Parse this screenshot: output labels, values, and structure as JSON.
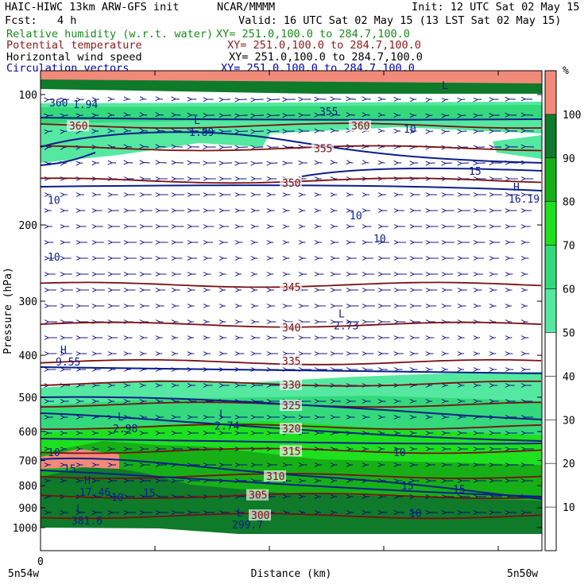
{
  "header": {
    "model": "HAIC-HIWC 13km ARW-GFS init",
    "org": "NCAR/MMMM",
    "init": "Init: 12 UTC Sat 02 May 15",
    "fcst_label": "Fcst:",
    "fcst_value": "4 h",
    "valid": "Valid: 16 UTC Sat 02 May 15 (13 LST Sat 02 May 15)"
  },
  "fields": [
    {
      "name": "Relative humidity (w.r.t. water)",
      "xy": "XY= 251.0,100.0 to 284.7,100.0",
      "color": "#1a8a1a"
    },
    {
      "name": "Potential temperature",
      "xy": "XY= 251.0,100.0 to 284.7,100.0",
      "color": "#8b1a1a"
    },
    {
      "name": "Horizontal wind speed",
      "xy": "XY= 251.0,100.0 to 284.7,100.0",
      "color": "#000000"
    },
    {
      "name": "Circulation vectors",
      "xy": "XY= 251.0,100.0 to 284.7,100.0",
      "color": "#0000b0"
    }
  ],
  "chart_data": {
    "type": "heatmap",
    "x_axis": {
      "label": "Distance (km)",
      "tick_zero": "0",
      "left_endpoint": "5n54w",
      "right_endpoint": "5n50w"
    },
    "y_axis": {
      "label": "Pressure (hPa)",
      "ticks": [
        100,
        200,
        300,
        400,
        500,
        600,
        700,
        800,
        900,
        1000
      ],
      "range": [
        1050,
        80
      ],
      "scale": "log"
    },
    "colorbar": {
      "unit": "%",
      "ticks": [
        10,
        20,
        30,
        40,
        50,
        60,
        70,
        80,
        90,
        100
      ],
      "bins": [
        {
          "from": 50,
          "to": 60,
          "color": "#55e8a0"
        },
        {
          "from": 60,
          "to": 70,
          "color": "#33d97a"
        },
        {
          "from": 70,
          "to": 80,
          "color": "#1ee01e"
        },
        {
          "from": 80,
          "to": 90,
          "color": "#16b016"
        },
        {
          "from": 90,
          "to": 100,
          "color": "#0f7a2a"
        },
        {
          "from": 100,
          "to": 110,
          "color": "#f28a7a"
        }
      ]
    },
    "theta_contours": [
      {
        "value": 315,
        "p": 665
      },
      {
        "value": 320,
        "p": 585
      },
      {
        "value": 325,
        "p": 520
      },
      {
        "value": 330,
        "p": 465
      },
      {
        "value": 335,
        "p": 415
      },
      {
        "value": 340,
        "p": 340
      },
      {
        "value": 345,
        "p": 275
      },
      {
        "value": 350,
        "p": 158
      },
      {
        "value": 355,
        "p": 133
      },
      {
        "value": 360,
        "p": 118
      },
      {
        "value": 305,
        "p": 845
      },
      {
        "value": 310,
        "p": 760
      },
      {
        "value": 300,
        "p": 940
      }
    ],
    "contour_labels": [
      {
        "text": "315",
        "p": 665
      },
      {
        "text": "320",
        "p": 590
      },
      {
        "text": "325",
        "p": 522
      },
      {
        "text": "330",
        "p": 467
      },
      {
        "text": "335",
        "p": 412
      },
      {
        "text": "340",
        "p": 345
      },
      {
        "text": "345",
        "p": 278
      },
      {
        "text": "350",
        "p": 160
      },
      {
        "text": "355",
        "p": 133
      },
      {
        "text": "360",
        "p": 118
      },
      {
        "text": "360",
        "p": 118
      },
      {
        "text": "310",
        "p": 760
      },
      {
        "text": "305",
        "p": 840
      },
      {
        "text": "300",
        "p": 935
      }
    ],
    "wind_labels": [
      {
        "text": "10",
        "p": 120
      },
      {
        "text": "10",
        "p": 175
      },
      {
        "text": "10",
        "p": 190
      },
      {
        "text": "10",
        "p": 237
      },
      {
        "text": "10",
        "p": 215
      },
      {
        "text": "15",
        "p": 150
      },
      {
        "text": "10",
        "p": 670
      },
      {
        "text": "10",
        "p": 670
      },
      {
        "text": "15",
        "p": 730
      },
      {
        "text": "15",
        "p": 800
      },
      {
        "text": "15",
        "p": 815
      },
      {
        "text": "15",
        "p": 830
      },
      {
        "text": "10",
        "p": 850
      },
      {
        "text": "10",
        "p": 925
      }
    ],
    "extrema": [
      {
        "kind": "H",
        "value": "9.55"
      },
      {
        "kind": "L",
        "value": "2.98"
      },
      {
        "kind": "L",
        "value": "2.74"
      },
      {
        "kind": "L",
        "value": "2.73"
      },
      {
        "kind": "H",
        "value": "17.46"
      },
      {
        "kind": "H",
        "value": "16.19"
      },
      {
        "kind": "L",
        "value": "1.89"
      },
      {
        "kind": "L",
        "value": "381.6"
      },
      {
        "kind": "L",
        "value": "299.7"
      }
    ],
    "stray_labels": [
      "360",
      "1.94",
      "355",
      "L"
    ]
  }
}
